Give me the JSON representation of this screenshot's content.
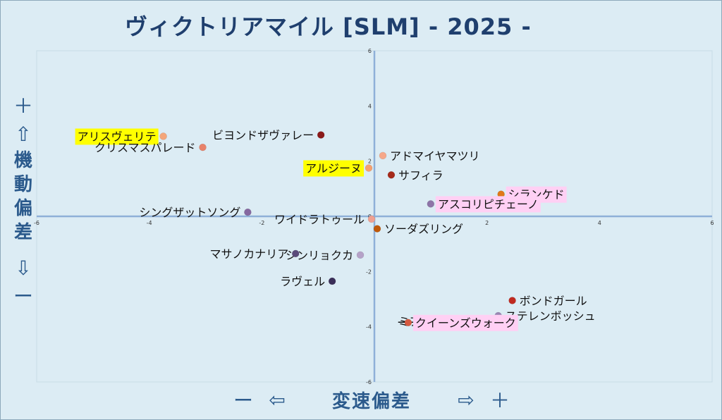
{
  "title": "ヴィクトリアマイル [SLM]  - 2025 -",
  "y_axis": {
    "plus": "＋",
    "up_arrow": "⇧",
    "label_chars": [
      "機",
      "動",
      "偏",
      "差"
    ],
    "down_arrow": "⇩",
    "minus": "ー"
  },
  "x_axis": {
    "minus": "ー",
    "left_arrow": "⇦",
    "label": "変速偏差",
    "right_arrow": "⇨",
    "plus": "＋"
  },
  "chart_data": {
    "type": "scatter",
    "xlim": [
      -6,
      6
    ],
    "ylim": [
      -6,
      6
    ],
    "x_ticks": [
      -6,
      -4,
      -2,
      0,
      2,
      4,
      6
    ],
    "y_ticks": [
      -6,
      -4,
      -2,
      0,
      2,
      4,
      6
    ],
    "grid": false,
    "highlight_colors": {
      "yellow": "#ffff00",
      "pink": "#ffd0f4"
    },
    "points": [
      {
        "name": "アリスヴェリテ",
        "x": -3.75,
        "y": 2.9,
        "color": "#f4a67a",
        "highlight": "yellow",
        "label_side": "left"
      },
      {
        "name": "クリスマスパレード",
        "x": -3.05,
        "y": 2.5,
        "color": "#e8826a",
        "highlight": "",
        "label_side": "left"
      },
      {
        "name": "ビヨンドザヴァレー",
        "x": -0.95,
        "y": 2.95,
        "color": "#8b1a1a",
        "highlight": "",
        "label_side": "left"
      },
      {
        "name": "アドマイヤマツリ",
        "x": 0.15,
        "y": 2.2,
        "color": "#f6a88a",
        "highlight": "",
        "label_side": "right"
      },
      {
        "name": "アルジーヌ",
        "x": -0.1,
        "y": 1.75,
        "color": "#f5a070",
        "highlight": "yellow",
        "label_side": "left"
      },
      {
        "name": "サフィラ",
        "x": 0.3,
        "y": 1.5,
        "color": "#a52a1a",
        "highlight": "",
        "label_side": "right"
      },
      {
        "name": "シランケド",
        "x": 2.25,
        "y": 0.8,
        "color": "#e07818",
        "highlight": "pink",
        "label_side": "right"
      },
      {
        "name": "アスコリピチェーノ",
        "x": 1.0,
        "y": 0.45,
        "color": "#8e74a8",
        "highlight": "pink",
        "label_side": "right"
      },
      {
        "name": "シングザットソング",
        "x": -2.25,
        "y": 0.15,
        "color": "#8568a0",
        "highlight": "",
        "label_side": "left"
      },
      {
        "name": "ワイドラトゥール",
        "x": -0.05,
        "y": -0.1,
        "color": "#f0a090",
        "highlight": "",
        "label_side": "left"
      },
      {
        "name": "ソーダズリング",
        "x": 0.05,
        "y": -0.45,
        "color": "#c05808",
        "highlight": "",
        "label_side": "right"
      },
      {
        "name": "シンリョクカ",
        "x": -0.25,
        "y": -1.4,
        "color": "#b5a2c8",
        "highlight": "",
        "label_side": "left"
      },
      {
        "name": "マサノカナリア",
        "x": -1.4,
        "y": -1.35,
        "color": "#5a4a7a",
        "highlight": "",
        "label_side": "left"
      },
      {
        "name": "ラヴェル",
        "x": -0.75,
        "y": -2.35,
        "color": "#3a2e58",
        "highlight": "",
        "label_side": "left"
      },
      {
        "name": "ボンドガール",
        "x": 2.45,
        "y": -3.05,
        "color": "#c02a20",
        "highlight": "",
        "label_side": "right"
      },
      {
        "name": "ステレンボッシュ",
        "x": 2.2,
        "y": -3.6,
        "color": "#9a86b4",
        "highlight": "",
        "label_side": "right"
      },
      {
        "name": "ミアネーロ",
        "x": 1.55,
        "y": -3.8,
        "color": "#e06818",
        "highlight": "",
        "label_side": "left",
        "strikethrough": true
      },
      {
        "name": "クイーンズウォーク",
        "x": 0.6,
        "y": -3.85,
        "color": "#d65a40",
        "highlight": "pink",
        "label_side": "right"
      }
    ]
  }
}
